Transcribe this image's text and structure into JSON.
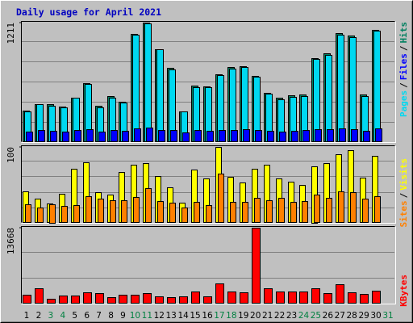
{
  "title": "Daily usage for April 2021",
  "legend_separator": "/",
  "highlight_categories": [
    "3",
    "4",
    "10",
    "11",
    "17",
    "18",
    "24",
    "25",
    "31"
  ],
  "highlight_color": "#008040",
  "category_color": "#000000",
  "chart_data": [
    {
      "type": "bar",
      "ylim": [
        0,
        1211
      ],
      "yticks": [
        1211
      ],
      "grid_lines": 6,
      "series": [
        {
          "name": "Pages",
          "color": "#00d8f0",
          "values": [
            315,
            381,
            365,
            348,
            448,
            589,
            348,
            448,
            398,
            1086,
            1203,
            937,
            738,
            307,
            555,
            555,
            680,
            746,
            763,
            663,
            489,
            431,
            456,
            464,
            846,
            887,
            1086,
            1061,
            464,
            1128,
            null
          ]
        },
        {
          "name": "Files",
          "color": "#0000ff",
          "values": [
            110,
            120,
            115,
            105,
            120,
            135,
            110,
            125,
            115,
            140,
            145,
            125,
            120,
            100,
            120,
            115,
            125,
            120,
            130,
            120,
            115,
            110,
            115,
            120,
            130,
            130,
            140,
            135,
            115,
            140,
            null
          ]
        },
        {
          "name": "Hits",
          "color": "#008060",
          "values": [
            323,
            381,
            381,
            356,
            448,
            597,
            365,
            464,
            406,
            1094,
            1211,
            937,
            754,
            315,
            572,
            564,
            688,
            763,
            771,
            671,
            497,
            448,
            473,
            481,
            854,
            904,
            1103,
            1078,
            481,
            1136,
            null
          ]
        }
      ]
    },
    {
      "type": "bar",
      "ylim": [
        0,
        100
      ],
      "yticks": [
        100
      ],
      "grid_lines": 5,
      "series": [
        {
          "name": "Sites",
          "color": "#ff8000",
          "values": [
            24,
            20,
            25,
            22,
            23,
            35,
            32,
            30,
            30,
            34,
            46,
            29,
            27,
            20,
            28,
            23,
            65,
            28,
            28,
            33,
            30,
            33,
            28,
            29,
            37,
            33,
            42,
            40,
            32,
            35,
            null
          ]
        },
        {
          "name": "Visits",
          "color": "#ffff00",
          "values": [
            41,
            32,
            26,
            38,
            71,
            80,
            40,
            37,
            67,
            77,
            79,
            62,
            47,
            27,
            70,
            59,
            100,
            61,
            53,
            71,
            77,
            58,
            54,
            50,
            75,
            79,
            90,
            96,
            60,
            88,
            null
          ]
        }
      ]
    },
    {
      "type": "bar",
      "ylim": [
        0,
        13668
      ],
      "yticks": [
        13668
      ],
      "grid_lines": 3,
      "categories": [
        "1",
        "2",
        "3",
        "4",
        "5",
        "6",
        "7",
        "8",
        "9",
        "10",
        "11",
        "12",
        "13",
        "14",
        "15",
        "16",
        "17",
        "18",
        "19",
        "20",
        "21",
        "22",
        "23",
        "24",
        "25",
        "26",
        "27",
        "28",
        "29",
        "30",
        "31"
      ],
      "series": [
        {
          "name": "KBytes",
          "color": "#ff0000",
          "values": [
            1634,
            2823,
            892,
            1486,
            1486,
            2080,
            1931,
            1189,
            1634,
            1634,
            1931,
            1337,
            1189,
            1337,
            2228,
            1337,
            3566,
            2228,
            2080,
            13668,
            2823,
            2228,
            2228,
            2228,
            2823,
            1931,
            3418,
            2080,
            1783,
            2377,
            null
          ]
        }
      ]
    }
  ]
}
